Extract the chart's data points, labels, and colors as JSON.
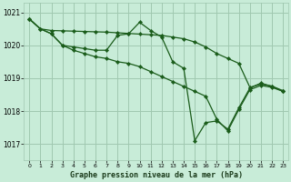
{
  "background_color": "#c8ecd8",
  "grid_color": "#a0c8b0",
  "line_color": "#1a5c1a",
  "marker_color": "#1a5c1a",
  "xlabel": "Graphe pression niveau de la mer (hPa)",
  "xlim": [
    -0.5,
    23.5
  ],
  "ylim": [
    1016.5,
    1021.3
  ],
  "yticks": [
    1017,
    1018,
    1019,
    1020,
    1021
  ],
  "xticks": [
    0,
    1,
    2,
    3,
    4,
    5,
    6,
    7,
    8,
    9,
    10,
    11,
    12,
    13,
    14,
    15,
    16,
    17,
    18,
    19,
    20,
    21,
    22,
    23
  ],
  "series": [
    {
      "x": [
        0,
        1,
        2,
        3,
        4,
        5,
        6,
        7,
        8,
        9,
        10,
        11,
        12,
        13,
        14,
        15,
        16,
        17,
        18,
        19,
        20,
        21,
        22,
        23
      ],
      "y": [
        1020.8,
        1020.5,
        null,
        null,
        null,
        null,
        null,
        1020.5,
        null,
        null,
        null,
        null,
        null,
        null,
        null,
        null,
        null,
        null,
        null,
        null,
        null,
        null,
        null,
        null
      ]
    },
    {
      "x": [
        0,
        1,
        2,
        3,
        4,
        5,
        6,
        7,
        8,
        9,
        10,
        11,
        12,
        13,
        14,
        15,
        16,
        17,
        18,
        19,
        20,
        21,
        22,
        23
      ],
      "y": [
        1020.8,
        1020.5,
        1020.35,
        1020.0,
        1019.95,
        1019.9,
        1019.85,
        1019.85,
        1020.3,
        1020.35,
        1020.7,
        1020.45,
        1020.25,
        1019.5,
        1019.3,
        1017.1,
        1017.65,
        1017.7,
        1017.45,
        1018.1,
        1018.7,
        1018.85,
        1018.75,
        1018.6
      ]
    },
    {
      "x": [
        0,
        1,
        2,
        3,
        4,
        5,
        6,
        7,
        8,
        9,
        10,
        11,
        12,
        13,
        14,
        15,
        16,
        17,
        18,
        19,
        20,
        21,
        22,
        23
      ],
      "y": [
        1020.8,
        1020.5,
        1020.35,
        1020.0,
        1019.85,
        1019.8,
        1019.75,
        1019.7,
        1019.65,
        1019.6,
        1019.5,
        1019.35,
        1019.2,
        1019.0,
        1018.85,
        1018.7,
        1018.55,
        1017.75,
        1017.4,
        1018.05,
        1018.65,
        1018.8,
        1018.75,
        1018.6
      ]
    },
    {
      "x": [
        0,
        1,
        2,
        3,
        4,
        5,
        6,
        7,
        8,
        9,
        10,
        11,
        12,
        13,
        14,
        15,
        16,
        17,
        18,
        19,
        20,
        21,
        22,
        23
      ],
      "y": [
        1020.8,
        1020.5,
        1020.35,
        1020.0,
        1019.85,
        1019.75,
        1019.7,
        1019.65,
        1019.6,
        1019.55,
        1019.45,
        1019.35,
        1019.2,
        1019.0,
        1018.8,
        1018.65,
        1018.5,
        1018.35,
        1018.2,
        1018.35,
        1018.65,
        1018.75,
        1018.7,
        1018.6
      ]
    }
  ]
}
